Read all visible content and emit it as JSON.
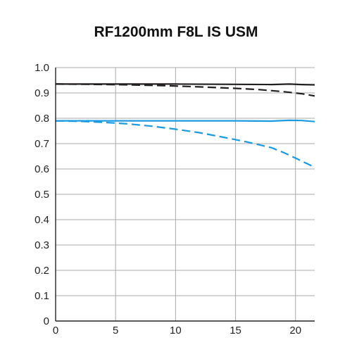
{
  "chart_data": {
    "type": "line",
    "title": "RF1200mm F8L IS USM",
    "xlabel": "",
    "ylabel": "",
    "xlim": [
      0,
      21.6
    ],
    "ylim": [
      0,
      1.0
    ],
    "x_ticks": [
      0,
      5,
      10,
      15,
      20
    ],
    "y_ticks": [
      1.0,
      0.9,
      0.8,
      0.7,
      0.6,
      0.5,
      0.4,
      0.3,
      0.2,
      0.1,
      0
    ],
    "y_tick_labels": [
      "1.0",
      "0.9",
      "0.8",
      "0.7",
      "0.6",
      "0.5",
      "0.4",
      "0.3",
      "0.2",
      "0.1",
      "0"
    ],
    "grid": true,
    "legend": "none",
    "series": [
      {
        "color": "#231f20",
        "dash": "solid",
        "x": [
          0,
          5,
          10,
          15,
          18,
          19.5,
          20.5,
          21.6
        ],
        "y": [
          0.935,
          0.935,
          0.935,
          0.934,
          0.933,
          0.935,
          0.933,
          0.932
        ]
      },
      {
        "color": "#231f20",
        "dash": "dashed",
        "x": [
          0,
          3,
          6,
          9,
          12,
          15,
          17,
          19,
          20.5,
          21.6
        ],
        "y": [
          0.935,
          0.934,
          0.932,
          0.929,
          0.924,
          0.918,
          0.913,
          0.905,
          0.897,
          0.888
        ]
      },
      {
        "color": "#1a9ae0",
        "dash": "solid",
        "x": [
          0,
          5,
          10,
          15,
          18,
          19.5,
          20.5,
          21.6
        ],
        "y": [
          0.79,
          0.79,
          0.79,
          0.79,
          0.789,
          0.792,
          0.791,
          0.787
        ]
      },
      {
        "color": "#1a9ae0",
        "dash": "dashed",
        "x": [
          0,
          2,
          4,
          6,
          8,
          10,
          12,
          14,
          16,
          18,
          19,
          20,
          21,
          21.6
        ],
        "y": [
          0.79,
          0.788,
          0.784,
          0.778,
          0.769,
          0.757,
          0.743,
          0.725,
          0.706,
          0.684,
          0.665,
          0.643,
          0.62,
          0.607
        ]
      }
    ]
  }
}
